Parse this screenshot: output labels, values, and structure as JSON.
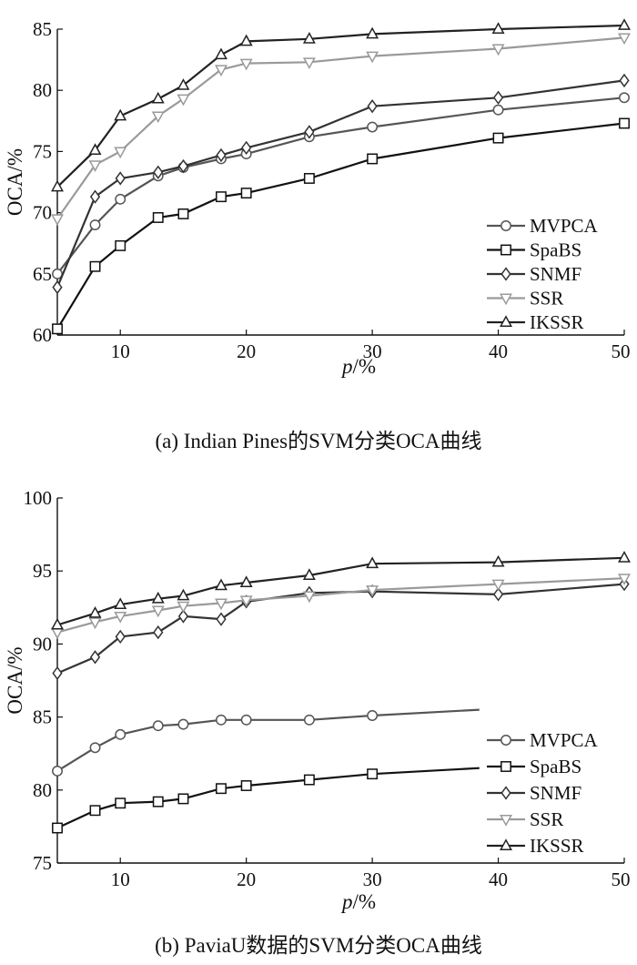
{
  "chart_data": [
    {
      "type": "line",
      "caption": "(a) Indian Pines的SVM分类OCA曲线",
      "xlabel_italic": "p",
      "xlabel_rest": "/%",
      "ylabel": "OCA/%",
      "xlim": [
        5,
        50
      ],
      "ylim": [
        60,
        85
      ],
      "xticks": [
        10,
        20,
        30,
        40,
        50
      ],
      "yticks": [
        60,
        65,
        70,
        75,
        80,
        85
      ],
      "legend_position": "bottom-right",
      "x": [
        5,
        8,
        10,
        13,
        15,
        18,
        20,
        25,
        30,
        40,
        50
      ],
      "series": [
        {
          "name": "MVPCA",
          "marker": "circle",
          "color": "#555555",
          "values": [
            65.0,
            69.0,
            71.1,
            73.0,
            73.7,
            74.4,
            74.8,
            76.2,
            77.0,
            78.4,
            79.4
          ]
        },
        {
          "name": "SpaBS",
          "marker": "square",
          "color": "#111111",
          "values": [
            60.5,
            65.6,
            67.3,
            69.6,
            69.9,
            71.3,
            71.6,
            72.8,
            74.4,
            76.1,
            77.3
          ]
        },
        {
          "name": "SNMF",
          "marker": "diamond",
          "color": "#333333",
          "values": [
            63.9,
            71.3,
            72.8,
            73.3,
            73.8,
            74.7,
            75.3,
            76.6,
            78.7,
            79.4,
            80.8
          ]
        },
        {
          "name": "SSR",
          "marker": "triangle-down",
          "color": "#9a9a9a",
          "values": [
            69.5,
            73.9,
            75.0,
            77.9,
            79.3,
            81.7,
            82.2,
            82.3,
            82.8,
            83.4,
            84.3
          ]
        },
        {
          "name": "IKSSR",
          "marker": "triangle-up",
          "color": "#222222",
          "values": [
            72.1,
            75.1,
            77.9,
            79.3,
            80.4,
            82.9,
            84.0,
            84.2,
            84.6,
            85.0,
            85.3
          ]
        }
      ]
    },
    {
      "type": "line",
      "caption": "(b) PaviaU数据的SVM分类OCA曲线",
      "xlabel_italic": "p",
      "xlabel_rest": "/%",
      "ylabel": "OCA/%",
      "xlim": [
        5,
        50
      ],
      "ylim": [
        75,
        100
      ],
      "xticks": [
        10,
        20,
        30,
        40,
        50
      ],
      "yticks": [
        75,
        80,
        85,
        90,
        95,
        100
      ],
      "legend_position": "bottom-right",
      "x": [
        5,
        8,
        10,
        13,
        15,
        18,
        20,
        25,
        30,
        40,
        50
      ],
      "series": [
        {
          "name": "MVPCA",
          "marker": "circle",
          "color": "#555555",
          "x": [
            5,
            8,
            10,
            13,
            15,
            18,
            20,
            25,
            30,
            38.5
          ],
          "values": [
            81.3,
            82.9,
            83.8,
            84.4,
            84.5,
            84.8,
            84.8,
            84.8,
            85.1,
            85.5
          ],
          "marker_count": 9
        },
        {
          "name": "SpaBS",
          "marker": "square",
          "color": "#111111",
          "x": [
            5,
            8,
            10,
            13,
            15,
            18,
            20,
            25,
            30,
            38.5
          ],
          "values": [
            77.4,
            78.6,
            79.1,
            79.2,
            79.4,
            80.1,
            80.3,
            80.7,
            81.1,
            81.5
          ],
          "marker_count": 9
        },
        {
          "name": "SNMF",
          "marker": "diamond",
          "color": "#333333",
          "values": [
            88.0,
            89.1,
            90.5,
            90.8,
            91.9,
            91.7,
            92.9,
            93.5,
            93.6,
            93.4,
            94.1
          ]
        },
        {
          "name": "SSR",
          "marker": "triangle-down",
          "color": "#9a9a9a",
          "values": [
            90.8,
            91.5,
            91.9,
            92.3,
            92.6,
            92.8,
            93.0,
            93.3,
            93.7,
            94.1,
            94.5
          ]
        },
        {
          "name": "IKSSR",
          "marker": "triangle-up",
          "color": "#222222",
          "values": [
            91.3,
            92.1,
            92.7,
            93.1,
            93.3,
            94.0,
            94.2,
            94.7,
            95.5,
            95.6,
            95.9
          ]
        }
      ]
    }
  ]
}
